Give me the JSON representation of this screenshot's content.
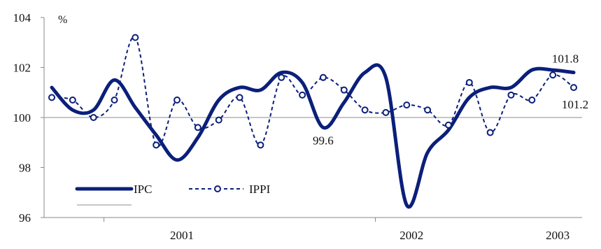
{
  "chart_data": {
    "type": "line",
    "title": "",
    "ylabel": "%",
    "xlabel": "",
    "ylim": [
      96,
      104
    ],
    "y_ticks": [
      96,
      98,
      100,
      102,
      104
    ],
    "x_tick_labels": [
      "2001",
      "2002",
      "2003"
    ],
    "reference_line": 100,
    "grid": false,
    "legend_position": "bottom-left",
    "colors": {
      "ipc": "#0b1f7a",
      "ippi": "#0b1f7a",
      "reference": "#b3b3b3",
      "axis": "#888888"
    },
    "series": [
      {
        "name": "IPC",
        "style": "solid-thick",
        "values": [
          101.2,
          100.3,
          100.3,
          101.5,
          100.4,
          99.3,
          98.3,
          99.2,
          100.7,
          101.2,
          101.1,
          101.8,
          101.4,
          99.6,
          100.6,
          101.8,
          101.6,
          96.5,
          98.6,
          99.5,
          100.8,
          101.2,
          101.2,
          101.9,
          101.9,
          101.8
        ],
        "labels": [
          {
            "index": 13,
            "text": "99.6"
          },
          {
            "index": 25,
            "text": "101.8"
          }
        ]
      },
      {
        "name": "IPPI",
        "style": "dashed-circle-markers",
        "values": [
          100.8,
          100.7,
          100.0,
          100.7,
          103.2,
          98.9,
          100.7,
          99.6,
          99.9,
          100.8,
          98.9,
          101.6,
          100.9,
          101.6,
          101.1,
          100.3,
          100.2,
          100.5,
          100.3,
          99.7,
          101.4,
          99.4,
          100.9,
          100.7,
          101.7,
          101.2
        ],
        "labels": [
          {
            "index": 25,
            "text": "101.2"
          }
        ]
      }
    ]
  }
}
